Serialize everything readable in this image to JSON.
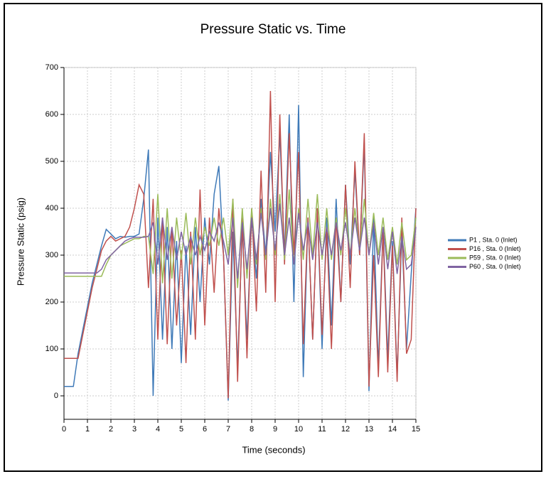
{
  "chart_data": {
    "type": "line",
    "title": "Pressure Static vs. Time",
    "x_label": "Time (seconds)",
    "y_label": "Pressure Static (psig)",
    "x": [
      0,
      0.2,
      0.4,
      0.6,
      0.8,
      1.0,
      1.2,
      1.4,
      1.6,
      1.8,
      2.0,
      2.2,
      2.4,
      2.6,
      2.8,
      3.0,
      3.2,
      3.4,
      3.6,
      3.8,
      4.0,
      4.2,
      4.4,
      4.6,
      4.8,
      5.0,
      5.2,
      5.4,
      5.6,
      5.8,
      6.0,
      6.2,
      6.4,
      6.6,
      6.8,
      7.0,
      7.2,
      7.4,
      7.6,
      7.8,
      8.0,
      8.2,
      8.4,
      8.6,
      8.8,
      9.0,
      9.2,
      9.4,
      9.6,
      9.8,
      10.0,
      10.2,
      10.4,
      10.6,
      10.8,
      11.0,
      11.2,
      11.4,
      11.6,
      11.8,
      12.0,
      12.2,
      12.4,
      12.6,
      12.8,
      13.0,
      13.2,
      13.4,
      13.6,
      13.8,
      14.0,
      14.2,
      14.4,
      14.6,
      14.8,
      15.0
    ],
    "series": [
      {
        "name": "P1 , Sta. 0 (Inlet)",
        "color": "#3f7ab8",
        "values": [
          20,
          20,
          20,
          90,
          140,
          190,
          240,
          280,
          320,
          355,
          345,
          335,
          340,
          338,
          340,
          340,
          345,
          420,
          525,
          0,
          380,
          120,
          360,
          100,
          330,
          70,
          320,
          130,
          360,
          200,
          380,
          280,
          430,
          490,
          300,
          -10,
          350,
          60,
          360,
          120,
          380,
          250,
          420,
          300,
          520,
          350,
          560,
          300,
          600,
          200,
          620,
          40,
          380,
          120,
          400,
          100,
          380,
          150,
          420,
          200,
          450,
          280,
          480,
          300,
          540,
          10,
          380,
          60,
          360,
          80,
          330,
          40,
          350,
          100,
          260,
          400
        ]
      },
      {
        "name": "P16 , Sta. 0 (Inlet)",
        "color": "#c0504d",
        "values": [
          80,
          80,
          80,
          80,
          130,
          180,
          230,
          270,
          310,
          330,
          340,
          330,
          335,
          340,
          360,
          400,
          450,
          430,
          230,
          420,
          120,
          380,
          110,
          360,
          150,
          310,
          70,
          350,
          120,
          440,
          150,
          380,
          220,
          400,
          300,
          -5,
          420,
          30,
          380,
          80,
          400,
          180,
          480,
          220,
          650,
          200,
          600,
          280,
          560,
          300,
          520,
          110,
          380,
          120,
          400,
          130,
          350,
          100,
          380,
          200,
          450,
          230,
          500,
          300,
          560,
          20,
          300,
          40,
          350,
          50,
          320,
          30,
          380,
          90,
          120,
          400
        ]
      },
      {
        "name": "P59 , Sta. 0 (Inlet)",
        "color": "#9bbb59",
        "values": [
          255,
          255,
          255,
          255,
          255,
          255,
          255,
          255,
          255,
          280,
          300,
          310,
          320,
          325,
          330,
          335,
          335,
          340,
          340,
          260,
          430,
          240,
          400,
          250,
          380,
          290,
          390,
          280,
          380,
          300,
          360,
          320,
          380,
          320,
          380,
          300,
          420,
          230,
          400,
          250,
          400,
          280,
          400,
          290,
          420,
          300,
          430,
          290,
          440,
          280,
          400,
          290,
          420,
          300,
          430,
          290,
          400,
          290,
          380,
          300,
          400,
          300,
          400,
          310,
          420,
          300,
          390,
          300,
          380,
          290,
          360,
          280,
          370,
          290,
          300,
          380
        ]
      },
      {
        "name": "P60 , Sta. 0 (Inlet)",
        "color": "#8064a2",
        "values": [
          262,
          262,
          262,
          262,
          262,
          262,
          262,
          262,
          270,
          290,
          300,
          310,
          320,
          330,
          335,
          338,
          338,
          338,
          340,
          370,
          280,
          380,
          290,
          360,
          290,
          350,
          300,
          340,
          300,
          340,
          310,
          350,
          330,
          370,
          330,
          280,
          380,
          250,
          370,
          270,
          380,
          290,
          390,
          300,
          400,
          310,
          410,
          300,
          380,
          280,
          390,
          310,
          370,
          290,
          370,
          300,
          360,
          300,
          370,
          310,
          370,
          300,
          380,
          310,
          380,
          300,
          370,
          280,
          360,
          270,
          350,
          260,
          340,
          270,
          280,
          360
        ]
      }
    ],
    "xlim": [
      0,
      15
    ],
    "xticks": [
      0,
      1,
      2,
      3,
      4,
      5,
      6,
      7,
      8,
      9,
      10,
      11,
      12,
      13,
      14,
      15
    ],
    "ylim": [
      -50,
      700
    ],
    "yticks": [
      0,
      100,
      200,
      300,
      400,
      500,
      600,
      700
    ],
    "grid": true
  }
}
